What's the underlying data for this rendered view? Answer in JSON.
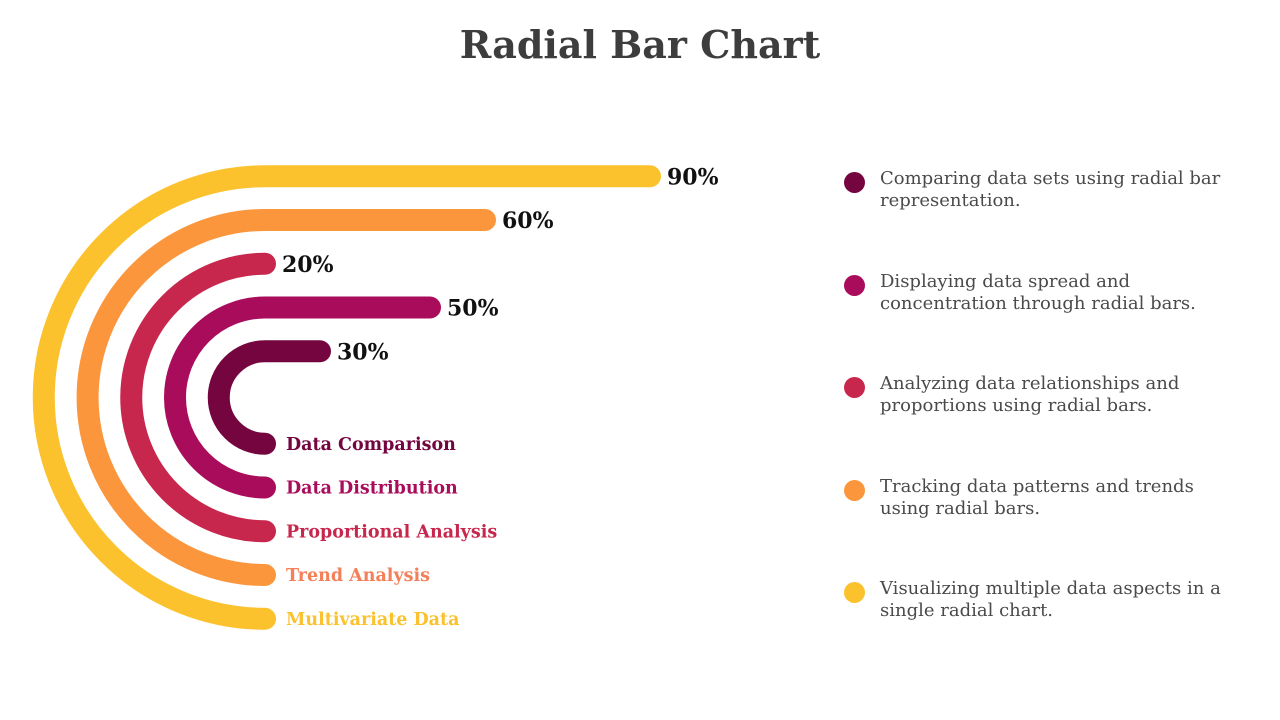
{
  "title": "Radial Bar Chart",
  "chart_data": {
    "type": "radial bar",
    "title": "Radial Bar Chart",
    "categories": [
      "Data Comparison",
      "Data Distribution",
      "Proportional Analysis",
      "Trend Analysis",
      "Multivariate Data"
    ],
    "value_labels": [
      "30%",
      "50%",
      "20%",
      "60%",
      "90%"
    ],
    "values": [
      30,
      50,
      20,
      60,
      90
    ],
    "colors": [
      "#74053f",
      "#aa0c5c",
      "#c8274d",
      "#fb963c",
      "#fbc22e"
    ],
    "category_label_colors": [
      "#74053f",
      "#aa0c5c",
      "#c8274d",
      "#f4805a",
      "#fbc22e"
    ]
  },
  "legend": {
    "items": [
      {
        "text": "Comparing data sets using radial bar representation.",
        "color": "#74053f"
      },
      {
        "text": "Displaying data spread and concentration through radial bars.",
        "color": "#aa0c5c"
      },
      {
        "text": "Analyzing data relationships and proportions using radial bars.",
        "color": "#c8274d"
      },
      {
        "text": "Tracking data patterns and trends using radial bars.",
        "color": "#fb963c"
      },
      {
        "text": "Visualizing multiple data aspects in a single radial chart.",
        "color": "#fbc22e"
      }
    ]
  }
}
